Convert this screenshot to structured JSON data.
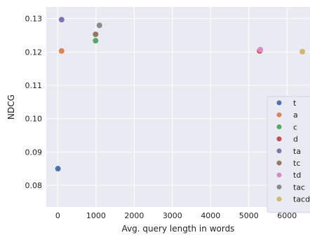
{
  "chart_data": {
    "type": "scatter",
    "xlabel": "Avg. query length in words",
    "ylabel": "NDCG",
    "xlim": [
      -300,
      6600
    ],
    "ylim": [
      0.0735,
      0.1335
    ],
    "xticks": [
      0,
      1000,
      2000,
      3000,
      4000,
      5000,
      6000
    ],
    "yticks": [
      0.08,
      0.09,
      0.1,
      0.11,
      0.12,
      0.13
    ],
    "ytick_labels": [
      "0.08",
      "0.09",
      "0.10",
      "0.11",
      "0.12",
      "0.13"
    ],
    "grid": true,
    "background": "#eaeaf2",
    "legend_position": "bottom-right",
    "series": [
      {
        "name": "t",
        "color": "#4c72b0",
        "points": [
          [
            5,
            0.085
          ]
        ]
      },
      {
        "name": "a",
        "color": "#dd8452",
        "points": [
          [
            100,
            0.1203
          ],
          [
            5280,
            0.1203
          ]
        ]
      },
      {
        "name": "c",
        "color": "#55a868",
        "points": [
          [
            990,
            0.1234
          ]
        ]
      },
      {
        "name": "d",
        "color": "#c44e52",
        "points": [
          [
            5290,
            0.1204
          ]
        ]
      },
      {
        "name": "ta",
        "color": "#8172b3",
        "points": [
          [
            100,
            0.1297
          ]
        ]
      },
      {
        "name": "tc",
        "color": "#937860",
        "points": [
          [
            990,
            0.1253
          ]
        ]
      },
      {
        "name": "td",
        "color": "#da8bc3",
        "points": [
          [
            5300,
            0.1207
          ]
        ]
      },
      {
        "name": "tac",
        "color": "#8c8c8c",
        "points": [
          [
            1090,
            0.128
          ]
        ]
      },
      {
        "name": "tacd",
        "color": "#ccb974",
        "points": [
          [
            6400,
            0.1201
          ]
        ]
      }
    ]
  }
}
